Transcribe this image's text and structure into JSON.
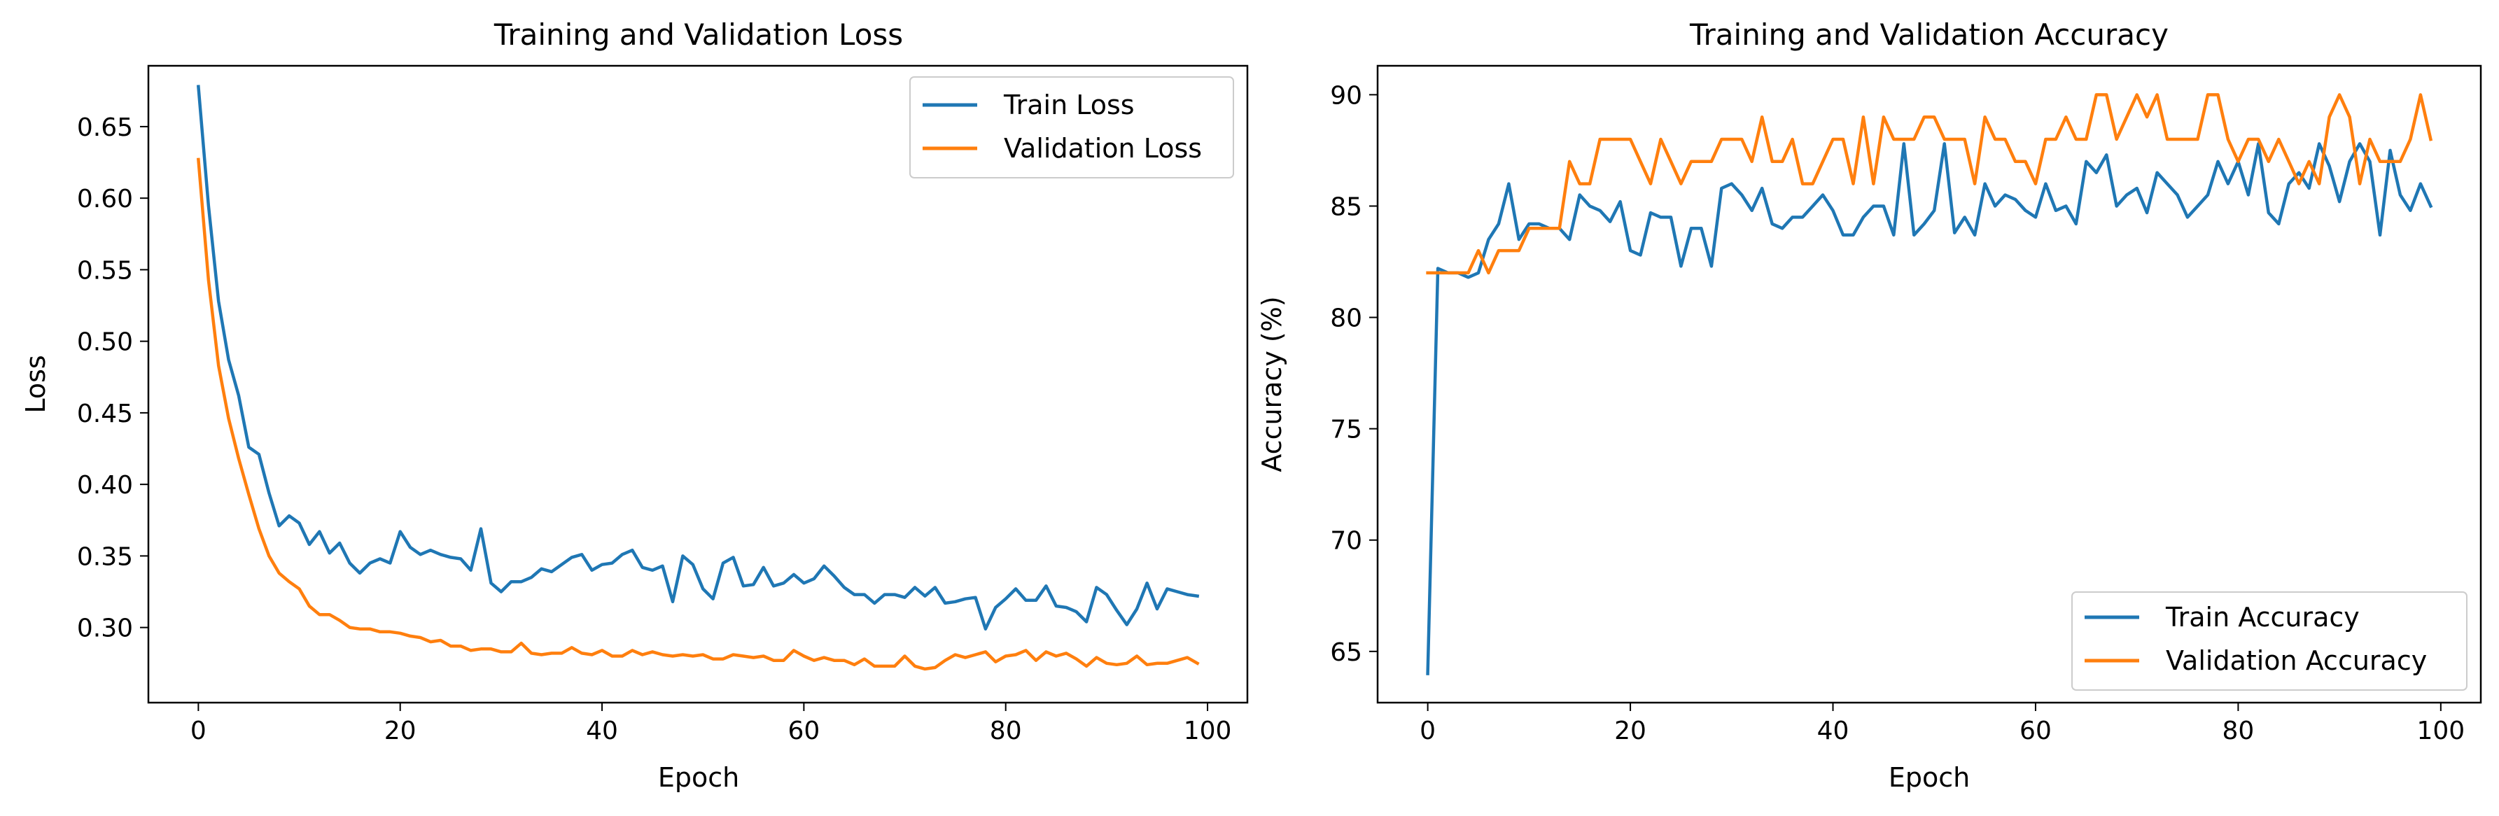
{
  "chart_data": [
    {
      "type": "line",
      "title": "Training and Validation Loss",
      "xlabel": "Epoch",
      "ylabel": "Loss",
      "xlim": [
        -4.95,
        103.95
      ],
      "ylim": [
        0.2475,
        0.6925
      ],
      "xticks": [
        0,
        20,
        40,
        60,
        80,
        100
      ],
      "xtick_labels": [
        "0",
        "20",
        "40",
        "60",
        "80",
        "100"
      ],
      "yticks": [
        0.3,
        0.35,
        0.4,
        0.45,
        0.5,
        0.55,
        0.6,
        0.65
      ],
      "ytick_labels": [
        "0.30",
        "0.35",
        "0.40",
        "0.45",
        "0.50",
        "0.55",
        "0.60",
        "0.65"
      ],
      "grid": false,
      "legend_position": "upper right",
      "x": [
        0,
        1,
        2,
        3,
        4,
        5,
        6,
        7,
        8,
        9,
        10,
        11,
        12,
        13,
        14,
        15,
        16,
        17,
        18,
        19,
        20,
        21,
        22,
        23,
        24,
        25,
        26,
        27,
        28,
        29,
        30,
        31,
        32,
        33,
        34,
        35,
        36,
        37,
        38,
        39,
        40,
        41,
        42,
        43,
        44,
        45,
        46,
        47,
        48,
        49,
        50,
        51,
        52,
        53,
        54,
        55,
        56,
        57,
        58,
        59,
        60,
        61,
        62,
        63,
        64,
        65,
        66,
        67,
        68,
        69,
        70,
        71,
        72,
        73,
        74,
        75,
        76,
        77,
        78,
        79,
        80,
        81,
        82,
        83,
        84,
        85,
        86,
        87,
        88,
        89,
        90,
        91,
        92,
        93,
        94,
        95,
        96,
        97,
        98,
        99
      ],
      "series": [
        {
          "name": "Train Loss",
          "color": "#1f77b4",
          "values": [
            0.678,
            0.595,
            0.528,
            0.487,
            0.462,
            0.426,
            0.421,
            0.394,
            0.371,
            0.378,
            0.373,
            0.358,
            0.367,
            0.352,
            0.359,
            0.345,
            0.338,
            0.345,
            0.348,
            0.345,
            0.367,
            0.356,
            0.351,
            0.354,
            0.351,
            0.349,
            0.348,
            0.34,
            0.369,
            0.331,
            0.325,
            0.332,
            0.332,
            0.335,
            0.341,
            0.339,
            0.344,
            0.349,
            0.351,
            0.34,
            0.344,
            0.345,
            0.351,
            0.354,
            0.342,
            0.34,
            0.343,
            0.318,
            0.35,
            0.344,
            0.327,
            0.32,
            0.345,
            0.349,
            0.329,
            0.33,
            0.342,
            0.329,
            0.331,
            0.337,
            0.331,
            0.334,
            0.343,
            0.336,
            0.328,
            0.323,
            0.323,
            0.317,
            0.323,
            0.323,
            0.321,
            0.328,
            0.322,
            0.328,
            0.317,
            0.318,
            0.32,
            0.321,
            0.299,
            0.314,
            0.32,
            0.327,
            0.319,
            0.319,
            0.329,
            0.315,
            0.314,
            0.311,
            0.304,
            0.328,
            0.323,
            0.312,
            0.302,
            0.313,
            0.331,
            0.313,
            0.327,
            0.325,
            0.323,
            0.322
          ]
        },
        {
          "name": "Validation Loss",
          "color": "#ff7f0e",
          "values": [
            0.627,
            0.543,
            0.483,
            0.446,
            0.418,
            0.393,
            0.369,
            0.35,
            0.338,
            0.332,
            0.327,
            0.315,
            0.309,
            0.309,
            0.305,
            0.3,
            0.299,
            0.299,
            0.297,
            0.297,
            0.296,
            0.294,
            0.293,
            0.29,
            0.291,
            0.287,
            0.287,
            0.284,
            0.285,
            0.285,
            0.283,
            0.283,
            0.289,
            0.282,
            0.281,
            0.282,
            0.282,
            0.286,
            0.282,
            0.281,
            0.284,
            0.28,
            0.28,
            0.284,
            0.281,
            0.283,
            0.281,
            0.28,
            0.281,
            0.28,
            0.281,
            0.278,
            0.278,
            0.281,
            0.28,
            0.279,
            0.28,
            0.277,
            0.277,
            0.284,
            0.28,
            0.277,
            0.279,
            0.277,
            0.277,
            0.274,
            0.278,
            0.273,
            0.273,
            0.273,
            0.28,
            0.273,
            0.271,
            0.272,
            0.277,
            0.281,
            0.279,
            0.281,
            0.283,
            0.276,
            0.28,
            0.281,
            0.284,
            0.277,
            0.283,
            0.28,
            0.282,
            0.278,
            0.273,
            0.279,
            0.275,
            0.274,
            0.275,
            0.28,
            0.274,
            0.275,
            0.275,
            0.277,
            0.279,
            0.275
          ]
        }
      ]
    },
    {
      "type": "line",
      "title": "Training and Validation Accuracy",
      "xlabel": "Epoch",
      "ylabel": "Accuracy (%)",
      "xlim": [
        -4.95,
        103.95
      ],
      "ylim": [
        62.7,
        91.3
      ],
      "xticks": [
        0,
        20,
        40,
        60,
        80,
        100
      ],
      "xtick_labels": [
        "0",
        "20",
        "40",
        "60",
        "80",
        "100"
      ],
      "yticks": [
        65,
        70,
        75,
        80,
        85,
        90
      ],
      "ytick_labels": [
        "65",
        "70",
        "75",
        "80",
        "85",
        "90"
      ],
      "grid": false,
      "legend_position": "lower right",
      "x": [
        0,
        1,
        2,
        3,
        4,
        5,
        6,
        7,
        8,
        9,
        10,
        11,
        12,
        13,
        14,
        15,
        16,
        17,
        18,
        19,
        20,
        21,
        22,
        23,
        24,
        25,
        26,
        27,
        28,
        29,
        30,
        31,
        32,
        33,
        34,
        35,
        36,
        37,
        38,
        39,
        40,
        41,
        42,
        43,
        44,
        45,
        46,
        47,
        48,
        49,
        50,
        51,
        52,
        53,
        54,
        55,
        56,
        57,
        58,
        59,
        60,
        61,
        62,
        63,
        64,
        65,
        66,
        67,
        68,
        69,
        70,
        71,
        72,
        73,
        74,
        75,
        76,
        77,
        78,
        79,
        80,
        81,
        82,
        83,
        84,
        85,
        86,
        87,
        88,
        89,
        90,
        91,
        92,
        93,
        94,
        95,
        96,
        97,
        98,
        99
      ],
      "series": [
        {
          "name": "Train Accuracy",
          "color": "#1f77b4",
          "values": [
            64.0,
            82.2,
            82.0,
            82.0,
            81.8,
            82.0,
            83.5,
            84.2,
            86.0,
            83.5,
            84.2,
            84.2,
            84.0,
            84.0,
            83.5,
            85.5,
            85.0,
            84.8,
            84.3,
            85.2,
            83.0,
            82.8,
            84.7,
            84.5,
            84.5,
            82.3,
            84.0,
            84.0,
            82.3,
            85.8,
            86.0,
            85.5,
            84.8,
            85.8,
            84.2,
            84.0,
            84.5,
            84.5,
            85.0,
            85.5,
            84.8,
            83.7,
            83.7,
            84.5,
            85.0,
            85.0,
            83.7,
            87.8,
            83.7,
            84.2,
            84.8,
            87.8,
            83.8,
            84.5,
            83.7,
            86.0,
            85.0,
            85.5,
            85.3,
            84.8,
            84.5,
            86.0,
            84.8,
            85.0,
            84.2,
            87.0,
            86.5,
            87.3,
            85.0,
            85.5,
            85.8,
            84.7,
            86.5,
            86.0,
            85.5,
            84.5,
            85.0,
            85.5,
            87.0,
            86.0,
            87.0,
            85.5,
            87.8,
            84.7,
            84.2,
            86.0,
            86.5,
            85.8,
            87.8,
            86.8,
            85.2,
            87.0,
            87.8,
            87.0,
            83.7,
            87.5,
            85.5,
            84.8,
            86.0,
            85.0
          ]
        },
        {
          "name": "Validation Accuracy",
          "color": "#ff7f0e",
          "values": [
            82.0,
            82.0,
            82.0,
            82.0,
            82.0,
            83.0,
            82.0,
            83.0,
            83.0,
            83.0,
            84.0,
            84.0,
            84.0,
            84.0,
            87.0,
            86.0,
            86.0,
            88.0,
            88.0,
            88.0,
            88.0,
            87.0,
            86.0,
            88.0,
            87.0,
            86.0,
            87.0,
            87.0,
            87.0,
            88.0,
            88.0,
            88.0,
            87.0,
            89.0,
            87.0,
            87.0,
            88.0,
            86.0,
            86.0,
            87.0,
            88.0,
            88.0,
            86.0,
            89.0,
            86.0,
            89.0,
            88.0,
            88.0,
            88.0,
            89.0,
            89.0,
            88.0,
            88.0,
            88.0,
            86.0,
            89.0,
            88.0,
            88.0,
            87.0,
            87.0,
            86.0,
            88.0,
            88.0,
            89.0,
            88.0,
            88.0,
            90.0,
            90.0,
            88.0,
            89.0,
            90.0,
            89.0,
            90.0,
            88.0,
            88.0,
            88.0,
            88.0,
            90.0,
            90.0,
            88.0,
            87.0,
            88.0,
            88.0,
            87.0,
            88.0,
            87.0,
            86.0,
            87.0,
            86.0,
            89.0,
            90.0,
            89.0,
            86.0,
            88.0,
            87.0,
            87.0,
            87.0,
            88.0,
            90.0,
            88.0
          ]
        }
      ]
    }
  ]
}
